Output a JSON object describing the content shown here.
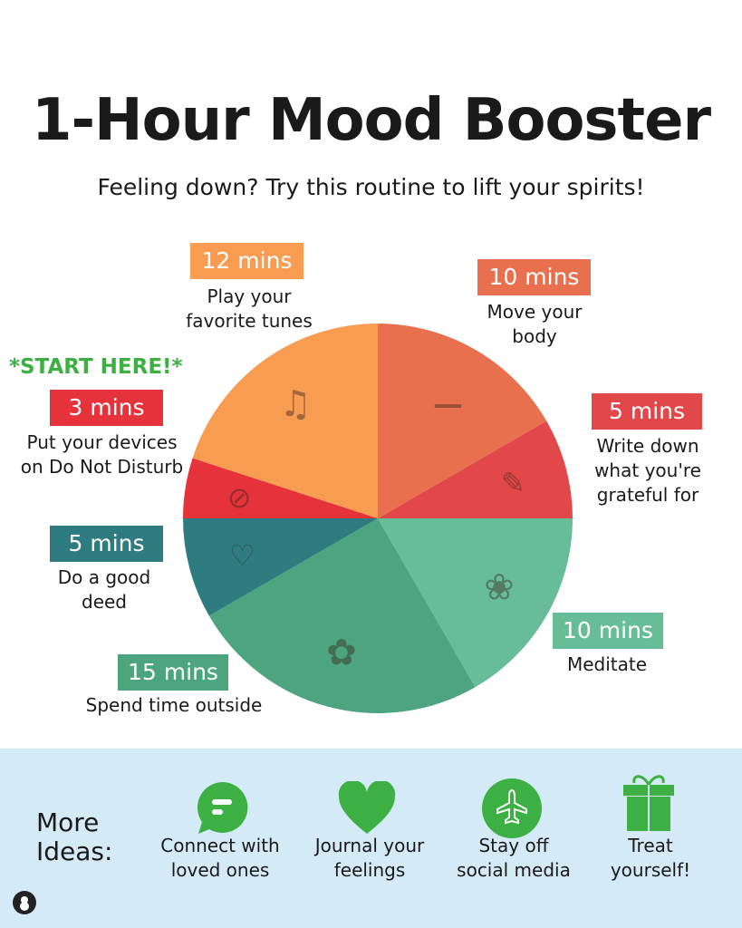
{
  "header": {
    "title": "1-Hour Mood Booster",
    "subtitle": "Feeling down? Try this routine to lift your spirits!"
  },
  "start_label": "*START HERE!*",
  "chart_data": {
    "type": "pie",
    "title": "1-Hour Mood Booster",
    "total": 60,
    "start_angle": "12 o'clock",
    "direction": "clockwise",
    "slices": [
      {
        "label": "10 mins",
        "desc": "Move your body",
        "value": 10,
        "color": "#e9704e",
        "icon": "yoga-mat-dumbbell-icon"
      },
      {
        "label": "5 mins",
        "desc": "Write down what you're grateful for",
        "value": 5,
        "color": "#e2474a",
        "icon": "open-book-icon"
      },
      {
        "label": "10 mins",
        "desc": "Meditate",
        "value": 10,
        "color": "#68bd99",
        "icon": "lotus-cloud-icon"
      },
      {
        "label": "15 mins",
        "desc": "Spend time outside",
        "value": 15,
        "color": "#4ca57e",
        "icon": "plant-flower-grass-icon"
      },
      {
        "label": "5 mins",
        "desc": "Do a good deed",
        "value": 5,
        "color": "#2e7b80",
        "icon": "heart-hand-icon"
      },
      {
        "label": "3 mins",
        "desc": "Put your devices on Do Not Disturb",
        "value": 3,
        "color": "#e6323a",
        "icon": "do-not-disturb-icon"
      },
      {
        "label": "12 mins",
        "desc": "Play your favorite tunes",
        "value": 12,
        "color": "#f89c52",
        "icon": "music-notes-icon"
      }
    ]
  },
  "more_ideas": {
    "label_line1": "More",
    "label_line2": "Ideas:",
    "accent": "#3cb043",
    "items": [
      {
        "line1": "Connect with",
        "line2": "loved ones",
        "icon": "chat-bubble-icon"
      },
      {
        "line1": "Journal your",
        "line2": "feelings",
        "icon": "heart-icon"
      },
      {
        "line1": "Stay off",
        "line2": "social media",
        "icon": "airplane-icon"
      },
      {
        "line1": "Treat",
        "line2": "yourself!",
        "icon": "gift-icon"
      }
    ]
  }
}
